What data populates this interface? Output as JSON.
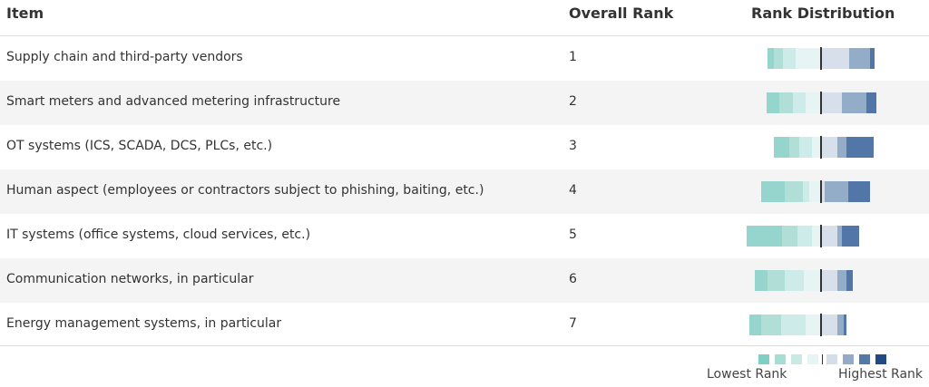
{
  "header": {
    "item": "Item",
    "overall_rank": "Overall Rank",
    "rank_distribution": "Rank Distribution"
  },
  "chart_data": {
    "type": "bar",
    "subtype": "diverging-stacked",
    "categories": [
      "Supply chain and third-party vendors",
      "Smart meters and advanced metering infrastructure",
      "OT systems (ICS, SCADA, DCS, PLCs, etc.)",
      "Human aspect (employees or contractors subject to phishing, baiting, etc.)",
      "IT systems (office systems, cloud services, etc.)",
      "Communication networks, in particular",
      "Energy management systems, in particular"
    ],
    "overall_rank": [
      "1",
      "2",
      "3",
      "4",
      "5",
      "6",
      "7"
    ],
    "low_side_values_outer_to_center": [
      [
        6,
        8,
        12,
        23
      ],
      [
        12,
        12,
        12,
        14
      ],
      [
        14,
        9,
        12,
        8
      ],
      [
        22,
        16,
        6,
        11
      ],
      [
        32,
        14,
        14,
        8
      ],
      [
        12,
        16,
        17,
        16
      ],
      [
        11,
        18,
        23,
        14
      ]
    ],
    "high_side_values_center_to_outer": [
      [
        26,
        19,
        4
      ],
      [
        19,
        23,
        9
      ],
      [
        15,
        8,
        25
      ],
      [
        3,
        22,
        20
      ],
      [
        15,
        4,
        16
      ],
      [
        15,
        8,
        6
      ],
      [
        15,
        6,
        2
      ]
    ],
    "low_colors": [
      "#96d5cd",
      "#b1dfd8",
      "#cdebe8",
      "#e6f4f3"
    ],
    "high_colors": [
      "#d6dfea",
      "#93adc9",
      "#5276a8"
    ]
  },
  "legend": {
    "colors": [
      "#80cfc4",
      "#a6ddd5",
      "#c8e9e4",
      "#e6f4f3",
      "#d5dee8",
      "#93abc8",
      "#5279a8",
      "#1f4a85"
    ],
    "low_label": "Lowest Rank",
    "high_label": "Highest Rank"
  }
}
